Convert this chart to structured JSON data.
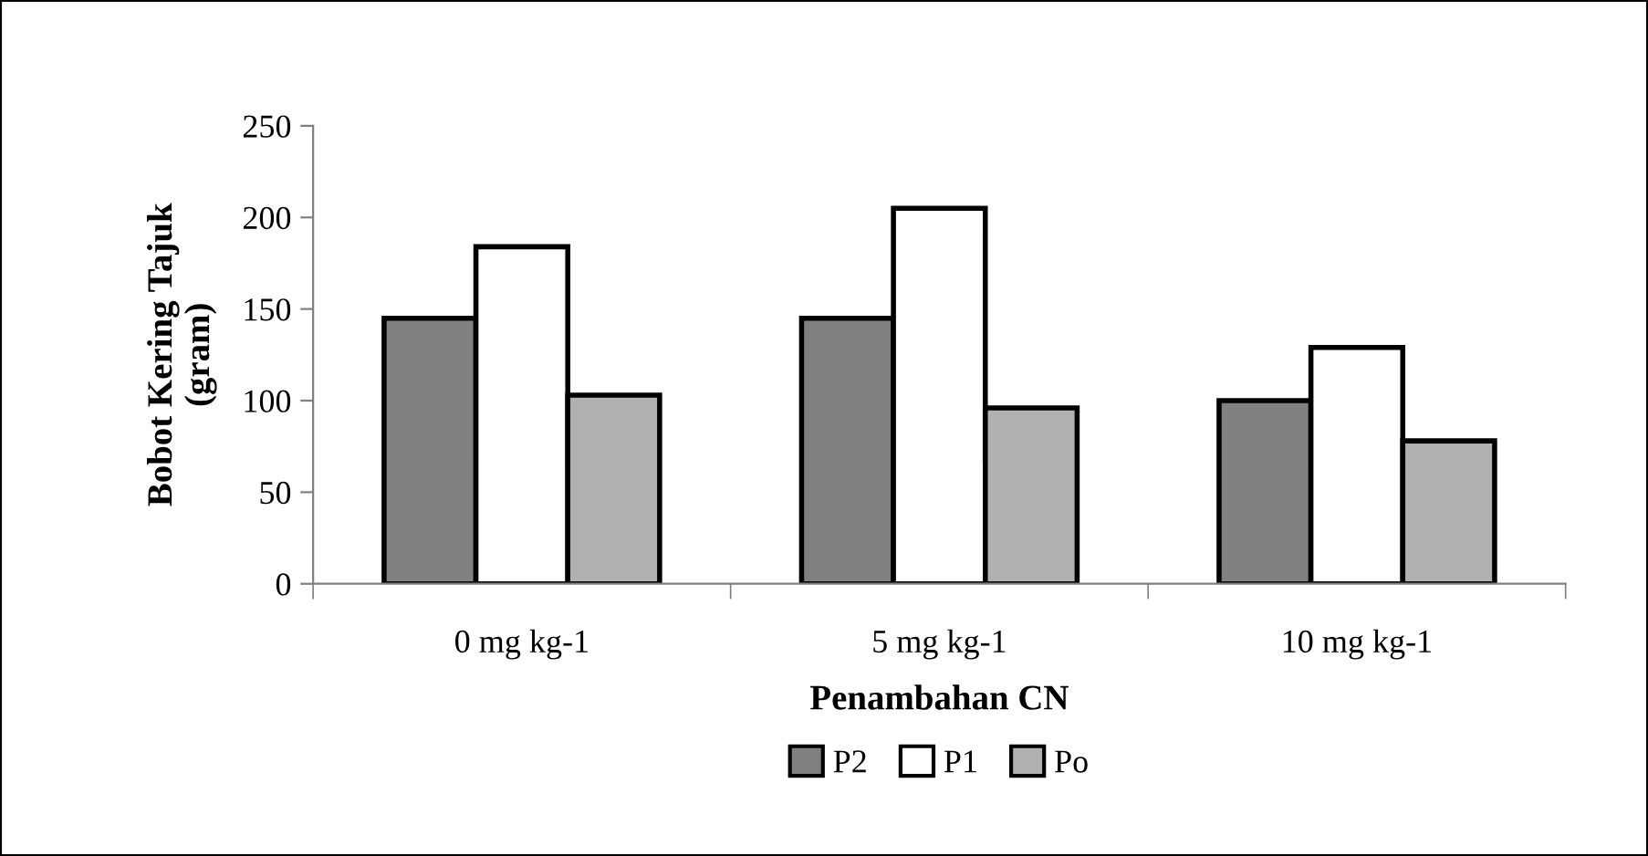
{
  "chart_data": {
    "type": "bar",
    "xlabel": "Penambahan CN",
    "ylabel": "Bobot Kering Tajuk\n(gram)",
    "categories": [
      "0 mg kg-1",
      "5 mg kg-1",
      "10 mg kg-1"
    ],
    "series": [
      {
        "name": "P2",
        "color": "#808080",
        "values": [
          145,
          145,
          100
        ]
      },
      {
        "name": "P1",
        "color": "#ffffff",
        "values": [
          184,
          205,
          129
        ]
      },
      {
        "name": "Po",
        "color": "#b0b0b0",
        "values": [
          103,
          96,
          78
        ]
      }
    ],
    "ylim": [
      0,
      250
    ],
    "yticks": [
      0,
      50,
      100,
      150,
      200,
      250
    ],
    "grid": false,
    "legend": "bottom"
  }
}
